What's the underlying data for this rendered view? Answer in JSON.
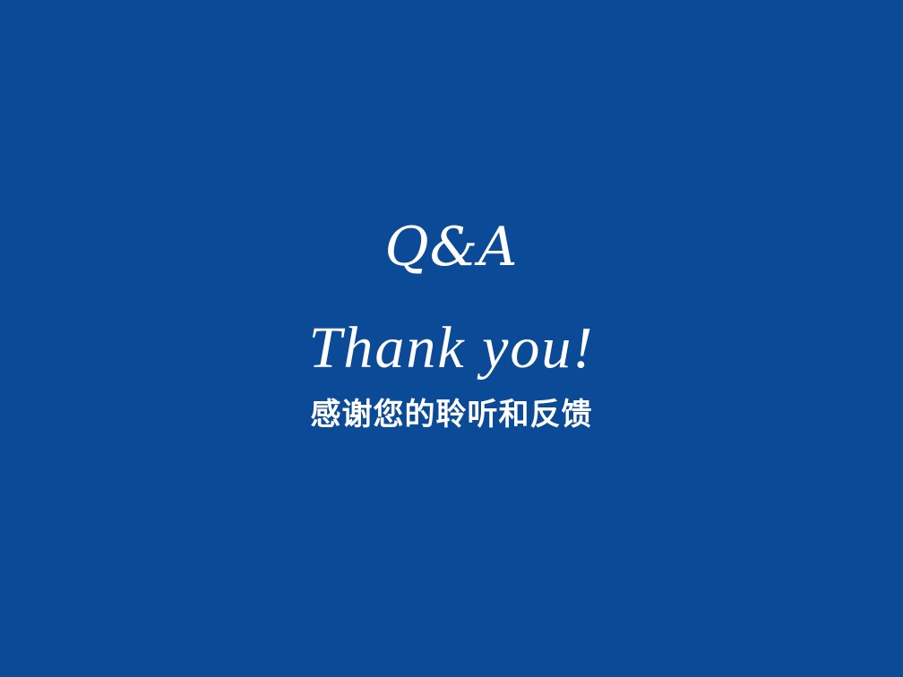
{
  "slide": {
    "heading": "Q&A",
    "thanks": "Thank you!",
    "subtitle": "感谢您的聆听和反馈"
  },
  "colors": {
    "background": "#0B4A96",
    "text": "#FFFFFF"
  }
}
